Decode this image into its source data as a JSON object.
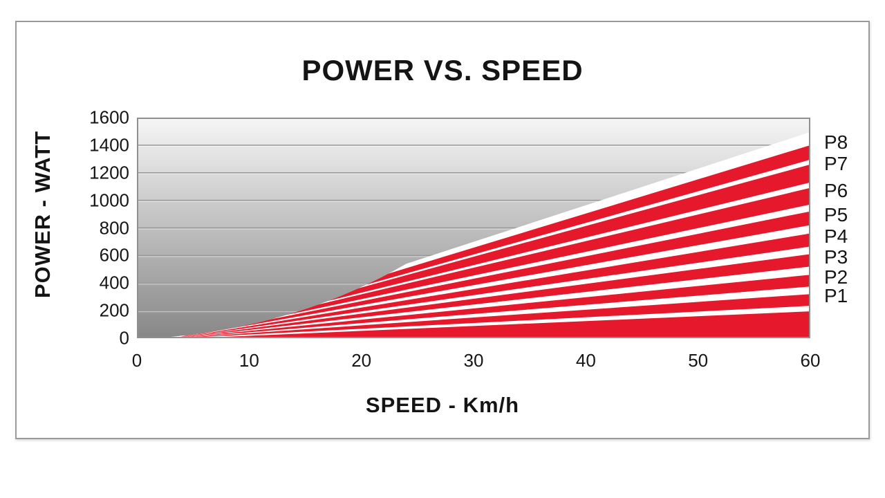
{
  "chart_data": {
    "type": "area",
    "title": "POWER VS. SPEED",
    "xlabel": "SPEED - Km/h",
    "ylabel": "POWER - WATT",
    "xlim": [
      0,
      60
    ],
    "ylim": [
      0,
      1600
    ],
    "xticks": [
      0,
      10,
      20,
      30,
      40,
      50,
      60
    ],
    "yticks": [
      0,
      200,
      400,
      600,
      800,
      1000,
      1200,
      1400,
      1600
    ],
    "grid": true,
    "legend_position": "right-edge-labels",
    "series": [
      {
        "name": "P8",
        "apex_speed": 3.5,
        "top_watts_at_60": 1400,
        "bottom_watts_at_60": 1295,
        "label_y_watts": 1420
      },
      {
        "name": "P7",
        "apex_speed": 3.5,
        "top_watts_at_60": 1260,
        "bottom_watts_at_60": 1130,
        "label_y_watts": 1265
      },
      {
        "name": "P6",
        "apex_speed": 3.5,
        "top_watts_at_60": 1090,
        "bottom_watts_at_60": 970,
        "label_y_watts": 1070
      },
      {
        "name": "P5",
        "apex_speed": 3.5,
        "top_watts_at_60": 920,
        "bottom_watts_at_60": 820,
        "label_y_watts": 895
      },
      {
        "name": "P4",
        "apex_speed": 3.5,
        "top_watts_at_60": 760,
        "bottom_watts_at_60": 665,
        "label_y_watts": 735
      },
      {
        "name": "P3",
        "apex_speed": 3.5,
        "top_watts_at_60": 610,
        "bottom_watts_at_60": 520,
        "label_y_watts": 585
      },
      {
        "name": "P2",
        "apex_speed": 3.5,
        "top_watts_at_60": 460,
        "bottom_watts_at_60": 375,
        "label_y_watts": 443
      },
      {
        "name": "P1",
        "apex_speed": 3.5,
        "top_watts_at_60": 320,
        "bottom_watts_at_60": 235,
        "label_y_watts": 307
      }
    ],
    "base_band": {
      "apex_speed": 5,
      "top_watts_at_60": 195
    },
    "envelope": {
      "apex_speed": 1.5,
      "curve_mid": [
        14,
        70
      ],
      "curve_end": [
        24,
        540
      ],
      "top_watts_at_60": 1495
    },
    "colors": {
      "band_red": "#e5192b",
      "gradient_top": "#f6f6f6",
      "gradient_bottom": "#878787",
      "gridline": "#989898",
      "gridline_highlight": "#ffffff",
      "plot_border": "#8f8f8f",
      "frame_border": "#9a9a9a",
      "text": "#141414",
      "fan_background": "#ffffff"
    }
  }
}
